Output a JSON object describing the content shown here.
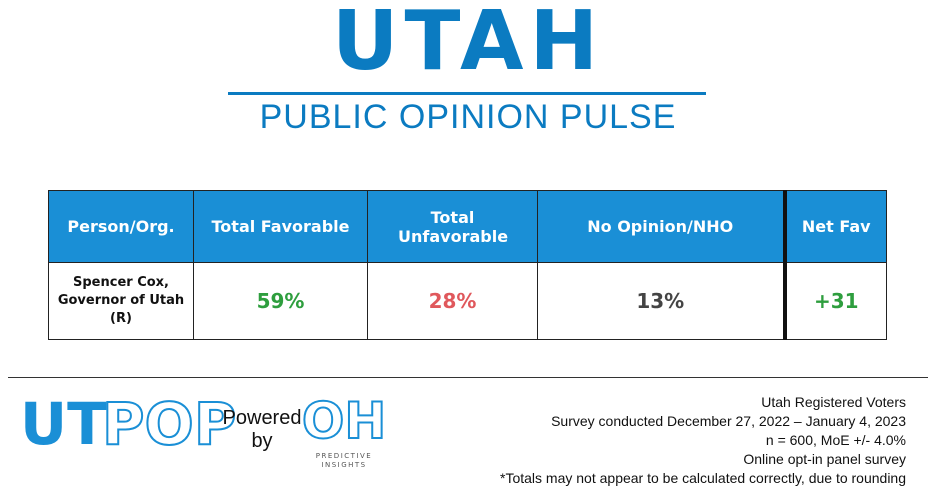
{
  "header": {
    "title": "UTAH",
    "subtitle": "PUBLIC OPINION PULSE"
  },
  "table": {
    "columns": [
      "Person/Org.",
      "Total Favorable",
      "Total Unfavorable",
      "No Opinion/NHO",
      "Net Fav"
    ],
    "rows": [
      [
        "Spencer Cox, Governor of Utah (R)",
        "59%",
        "28%",
        "13%",
        "+31"
      ]
    ]
  },
  "footer": {
    "logo": {
      "solid": "UT",
      "outline": "POP",
      "powered": "Powered",
      "by": "by",
      "partner": "OH",
      "partner_line1": "PREDICTIVE",
      "partner_line2": "INSIGHTS"
    },
    "notes": [
      "Utah Registered Voters",
      "Survey conducted December 27, 2022 – January 4, 2023",
      "n = 600, MoE +/- 4.0%",
      "Online opt-in panel survey",
      "*Totals may not appear to be calculated correctly, due to rounding"
    ]
  }
}
